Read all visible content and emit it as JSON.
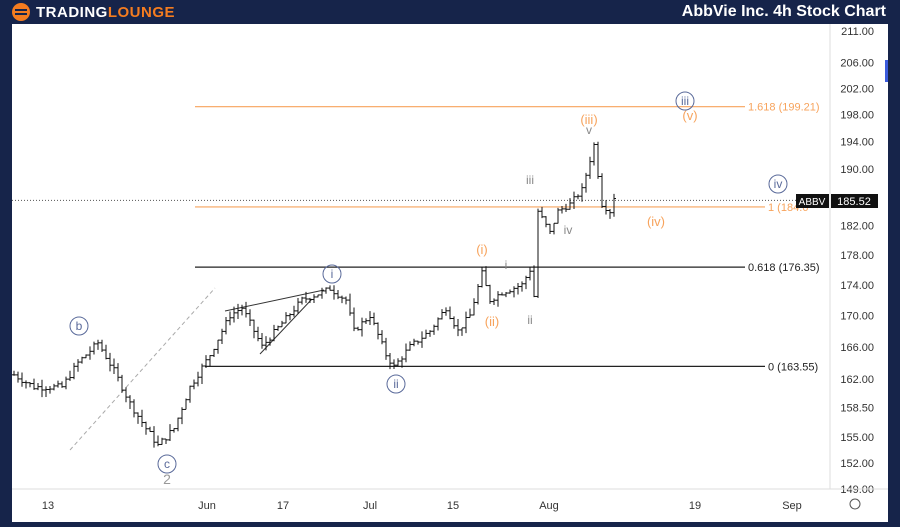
{
  "header": {
    "logo_a": "TRADING",
    "logo_b": "LOUNGE",
    "title": "AbbVie Inc. 4h Stock Chart"
  },
  "chart_data": {
    "type": "candlestick",
    "ticker": "ABBV",
    "last_price": "185.52",
    "y_scale": "log",
    "ylim": [
      149,
      211
    ],
    "y_ticks": [
      "211.00",
      "206.00",
      "202.00",
      "198.00",
      "194.00",
      "190.00",
      "182.00",
      "178.00",
      "174.00",
      "170.00",
      "166.00",
      "162.00",
      "158.50",
      "155.00",
      "152.00",
      "149.00"
    ],
    "x_ticks": [
      "13",
      "Jun",
      "17",
      "Jul",
      "15",
      "Aug",
      "19",
      "Sep"
    ],
    "price_path": [
      [
        0,
        162.5
      ],
      [
        5,
        161
      ],
      [
        12,
        161
      ],
      [
        16,
        164
      ],
      [
        21,
        166.5
      ],
      [
        25,
        163
      ],
      [
        29,
        159
      ],
      [
        33,
        156
      ],
      [
        36,
        154
      ],
      [
        40,
        156
      ],
      [
        44,
        161
      ],
      [
        49,
        165
      ],
      [
        54,
        170
      ],
      [
        57,
        171
      ],
      [
        62,
        166
      ],
      [
        67,
        169
      ],
      [
        72,
        172
      ],
      [
        77,
        173
      ],
      [
        79,
        173.5
      ],
      [
        83,
        172
      ],
      [
        85,
        168
      ],
      [
        89,
        170
      ],
      [
        93,
        165
      ],
      [
        95,
        163.5
      ],
      [
        99,
        166
      ],
      [
        104,
        168
      ],
      [
        108,
        171
      ],
      [
        111,
        168
      ],
      [
        114,
        170
      ],
      [
        117,
        175.5
      ],
      [
        119,
        172
      ],
      [
        122,
        173
      ],
      [
        127,
        174
      ],
      [
        129,
        176
      ],
      [
        130,
        172.5
      ],
      [
        131,
        184
      ],
      [
        134,
        181
      ],
      [
        136,
        184
      ],
      [
        139,
        185
      ],
      [
        142,
        187
      ],
      [
        145,
        193.5
      ],
      [
        147,
        185
      ],
      [
        149,
        184
      ],
      [
        150,
        186
      ]
    ],
    "levels": [
      {
        "label": "1.618 (199.21)",
        "value": 199.21,
        "color": "#f7a35c"
      },
      {
        "label": "1 (184.6",
        "value": 184.6,
        "color": "#f7a35c"
      },
      {
        "label": "0.618 (176.35)",
        "value": 176.35,
        "color": "#222222"
      },
      {
        "label": "0 (163.55)",
        "value": 163.55,
        "color": "#222222"
      }
    ],
    "wave_labels": {
      "b": "b",
      "c": "c",
      "z": "2",
      "i": "i",
      "ii": "ii",
      "iii": "iii",
      "iv": "iv",
      "o_i": "(i)",
      "o_ii": "(ii)",
      "o_iii": "(iii)",
      "o_iv": "(iv)",
      "o_v": "(v)",
      "s_i": "i",
      "s_ii": "ii",
      "s_iii": "iii",
      "s_iv": "iv",
      "s_v": "v"
    },
    "colors": {
      "orange": "#f7a35c",
      "circle": "#5a6a9a",
      "minor": "#888888"
    }
  }
}
